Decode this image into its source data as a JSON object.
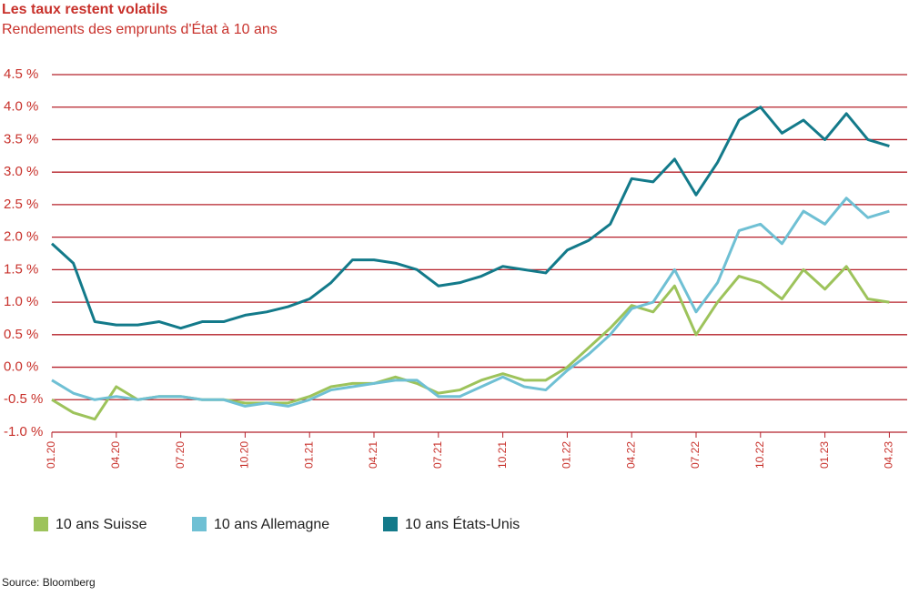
{
  "chart_data": {
    "type": "line",
    "title": "Les taux restent volatils",
    "subtitle": "Rendements des emprunts d'État à 10 ans",
    "source": "Source: Bloomberg",
    "categories": [
      "01.20",
      null,
      null,
      "04.20",
      null,
      null,
      "07.20",
      null,
      null,
      "10.20",
      null,
      null,
      "01.21",
      null,
      null,
      "04.21",
      null,
      null,
      "07.21",
      null,
      null,
      "10.21",
      null,
      null,
      "01.22",
      null,
      null,
      "04.22",
      null,
      null,
      "07.22",
      null,
      null,
      "10.22",
      null,
      null,
      "01.23",
      null,
      null,
      "04.23"
    ],
    "series": [
      {
        "name": "10 ans Suisse",
        "color": "#9dc35b",
        "values": [
          -0.5,
          -0.7,
          -0.8,
          -0.3,
          -0.5,
          -0.45,
          -0.45,
          -0.5,
          -0.5,
          -0.55,
          -0.55,
          -0.55,
          -0.45,
          -0.3,
          -0.25,
          -0.25,
          -0.15,
          -0.25,
          -0.4,
          -0.35,
          -0.2,
          -0.1,
          -0.2,
          -0.2,
          0.0,
          0.3,
          0.6,
          0.95,
          0.85,
          1.25,
          0.5,
          1.0,
          1.4,
          1.3,
          1.05,
          1.5,
          1.2,
          1.55,
          1.05,
          1.0
        ]
      },
      {
        "name": "10 ans Allemagne",
        "color": "#6fc0d4",
        "values": [
          -0.2,
          -0.4,
          -0.5,
          -0.45,
          -0.5,
          -0.45,
          -0.45,
          -0.5,
          -0.5,
          -0.6,
          -0.55,
          -0.6,
          -0.5,
          -0.35,
          -0.3,
          -0.25,
          -0.2,
          -0.2,
          -0.45,
          -0.45,
          -0.3,
          -0.15,
          -0.3,
          -0.35,
          -0.05,
          0.2,
          0.5,
          0.9,
          1.0,
          1.5,
          0.85,
          1.3,
          2.1,
          2.2,
          1.9,
          2.4,
          2.2,
          2.6,
          2.3,
          2.4
        ]
      },
      {
        "name": "10 ans États-Unis",
        "color": "#137a8a",
        "values": [
          1.9,
          1.6,
          0.7,
          0.65,
          0.65,
          0.7,
          0.6,
          0.7,
          0.7,
          0.8,
          0.85,
          0.93,
          1.05,
          1.3,
          1.65,
          1.65,
          1.6,
          1.5,
          1.25,
          1.3,
          1.4,
          1.55,
          1.5,
          1.45,
          1.8,
          1.95,
          2.2,
          2.9,
          2.85,
          3.2,
          2.65,
          3.15,
          3.8,
          4.0,
          3.6,
          3.8,
          3.5,
          3.9,
          3.5,
          3.4
        ]
      }
    ],
    "ylim": [
      -1.0,
      4.5
    ],
    "yticks": [
      {
        "value": -1.0,
        "label": "-1.0 %"
      },
      {
        "value": -0.5,
        "label": "-0.5 %"
      },
      {
        "value": 0.0,
        "label": "0.0 %"
      },
      {
        "value": 0.5,
        "label": "0.5 %"
      },
      {
        "value": 1.0,
        "label": "1.0 %"
      },
      {
        "value": 1.5,
        "label": "1.5 %"
      },
      {
        "value": 2.0,
        "label": "2.0 %"
      },
      {
        "value": 2.5,
        "label": "2.5 %"
      },
      {
        "value": 3.0,
        "label": "3.0 %"
      },
      {
        "value": 3.5,
        "label": "3.5 %"
      },
      {
        "value": 4.0,
        "label": "4.0 %"
      },
      {
        "value": 4.5,
        "label": "4.5 %"
      }
    ],
    "grid": true
  }
}
